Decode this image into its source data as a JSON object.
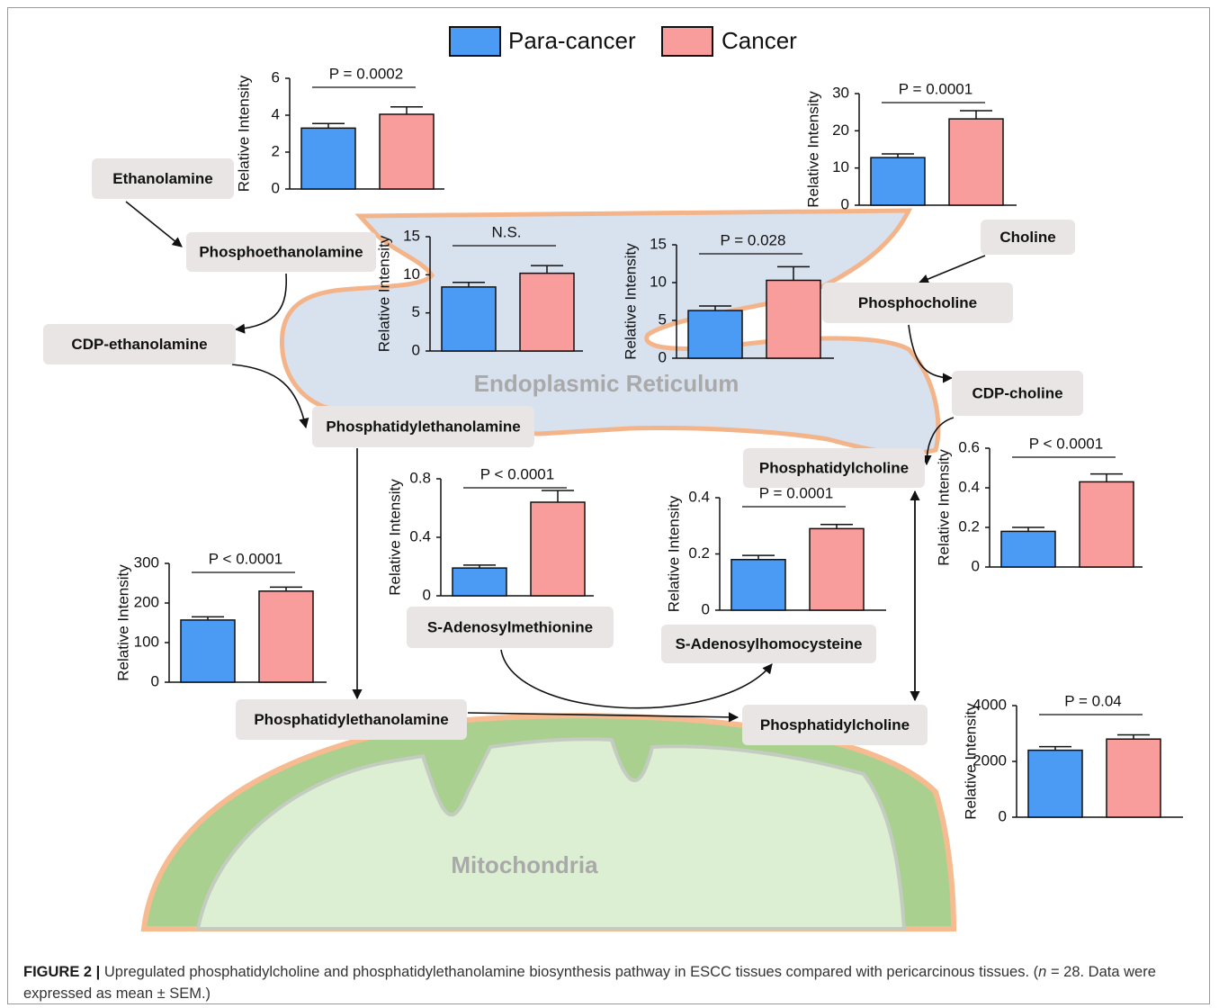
{
  "legend": [
    {
      "name": "Para-cancer",
      "color": "#4b9bf5"
    },
    {
      "name": "Cancer",
      "color": "#f99c9c"
    }
  ],
  "compartments": {
    "er": "Endoplasmic Reticulum",
    "mito": "Mitochondria"
  },
  "nodes": [
    "Ethanolamine",
    "Phosphoethanolamine",
    "CDP-ethanolamine",
    "Phosphatidylethanolamine",
    "Choline",
    "Phosphocholine",
    "CDP-choline",
    "Phosphatidylcholine",
    "S-Adenosylmethionine",
    "S-Adenosylhomocysteine",
    "Phosphatidylethanolamine",
    "Phosphatidylcholine"
  ],
  "chart_data": [
    {
      "type": "bar",
      "ylabel": "Relative  Intensity",
      "annotation": "P = 0.0002",
      "values": [
        3.3,
        4.05
      ],
      "errors": [
        0.25,
        0.4
      ],
      "ylim": [
        0,
        6
      ],
      "yticks": [
        0,
        2,
        4,
        6
      ]
    },
    {
      "type": "bar",
      "ylabel": "Relative  Intensity",
      "annotation": "P = 0.0001",
      "values": [
        12.8,
        23.2
      ],
      "errors": [
        1,
        2.2
      ],
      "ylim": [
        0,
        30
      ],
      "yticks": [
        0,
        10,
        20,
        30
      ]
    },
    {
      "type": "bar",
      "ylabel": "Relative  Intensity",
      "annotation": "N.S.",
      "values": [
        8.4,
        10.2
      ],
      "errors": [
        0.6,
        1
      ],
      "ylim": [
        0,
        15
      ],
      "yticks": [
        0,
        5,
        10,
        15
      ]
    },
    {
      "type": "bar",
      "ylabel": "Relative  Intensity",
      "annotation": "P = 0.028",
      "values": [
        6.3,
        10.3
      ],
      "errors": [
        0.6,
        1.8
      ],
      "ylim": [
        0,
        15
      ],
      "yticks": [
        0,
        5,
        10,
        15
      ]
    },
    {
      "type": "bar",
      "ylabel": "Relative  Intensity",
      "annotation": "P < 0.0001",
      "values": [
        157,
        230
      ],
      "errors": [
        8,
        10
      ],
      "ylim": [
        0,
        300
      ],
      "yticks": [
        0,
        100,
        200,
        300
      ]
    },
    {
      "type": "bar",
      "ylabel": "Relative  Intensity",
      "annotation": "P < 0.0001",
      "values": [
        0.19,
        0.64
      ],
      "errors": [
        0.02,
        0.08
      ],
      "ylim": [
        0,
        0.8
      ],
      "yticks": [
        0,
        0.4,
        0.8
      ]
    },
    {
      "type": "bar",
      "ylabel": "Relative  Intensity",
      "annotation": "P = 0.0001",
      "values": [
        0.18,
        0.29
      ],
      "errors": [
        0.015,
        0.015
      ],
      "ylim": [
        0,
        0.4
      ],
      "yticks": [
        0,
        0.2,
        0.4
      ]
    },
    {
      "type": "bar",
      "ylabel": "Relative  Intensity",
      "annotation": "P < 0.0001",
      "values": [
        0.18,
        0.43
      ],
      "errors": [
        0.02,
        0.04
      ],
      "ylim": [
        0,
        0.6
      ],
      "yticks": [
        0,
        0.2,
        0.4,
        0.6
      ]
    },
    {
      "type": "bar",
      "ylabel": "Relative  Intensity",
      "annotation": "P = 0.04",
      "values": [
        2400,
        2800
      ],
      "errors": [
        130,
        150
      ],
      "ylim": [
        0,
        4000
      ],
      "yticks": [
        0,
        2000,
        4000
      ]
    }
  ],
  "caption": {
    "label": "FIGURE 2 |",
    "text": "Upregulated phosphatidylcholine and phosphatidylethanolamine biosynthesis pathway in ESCC tissues compared with pericarcinous tissues. (",
    "italic": "n",
    "text2": "= 28. Data were expressed as mean ± SEM.)"
  }
}
